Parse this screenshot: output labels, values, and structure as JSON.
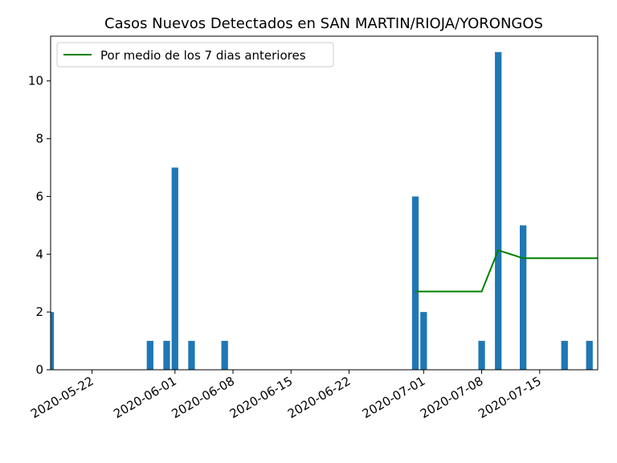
{
  "chart_data": {
    "type": "bar",
    "title": "Casos Nuevos Detectados en SAN MARTIN/RIOJA/YORONGOS",
    "xlabel": "",
    "ylabel": "",
    "x_range": [
      "2020-05-17",
      "2020-07-22"
    ],
    "ylim": [
      0,
      11.55
    ],
    "x_ticks": [
      "2020-05-22",
      "2020-06-01",
      "2020-06-08",
      "2020-06-15",
      "2020-06-22",
      "2020-07-01",
      "2020-07-08",
      "2020-07-15"
    ],
    "y_ticks": [
      "0",
      "2",
      "4",
      "6",
      "8",
      "10"
    ],
    "grid": false,
    "legend": {
      "position": "top-left",
      "entries": [
        "Por medio de los 7 dias anteriores"
      ]
    },
    "colors": {
      "bars": "#1f77b4",
      "line": "#008000"
    },
    "bars": [
      {
        "date": "2020-05-17",
        "value": 2
      },
      {
        "date": "2020-05-29",
        "value": 1
      },
      {
        "date": "2020-05-31",
        "value": 1
      },
      {
        "date": "2020-06-01",
        "value": 7
      },
      {
        "date": "2020-06-03",
        "value": 1
      },
      {
        "date": "2020-06-07",
        "value": 1
      },
      {
        "date": "2020-06-30",
        "value": 6
      },
      {
        "date": "2020-07-01",
        "value": 2
      },
      {
        "date": "2020-07-08",
        "value": 1
      },
      {
        "date": "2020-07-10",
        "value": 11
      },
      {
        "date": "2020-07-13",
        "value": 5
      },
      {
        "date": "2020-07-18",
        "value": 1
      },
      {
        "date": "2020-07-21",
        "value": 1
      }
    ],
    "series": [
      {
        "name": "Por medio de los 7 dias anteriores",
        "type": "line",
        "points": [
          {
            "date": "2020-06-30",
            "value": 2.71
          },
          {
            "date": "2020-07-08",
            "value": 2.71
          },
          {
            "date": "2020-07-10",
            "value": 4.14
          },
          {
            "date": "2020-07-13",
            "value": 3.86
          },
          {
            "date": "2020-07-22",
            "value": 3.86
          }
        ]
      }
    ]
  }
}
